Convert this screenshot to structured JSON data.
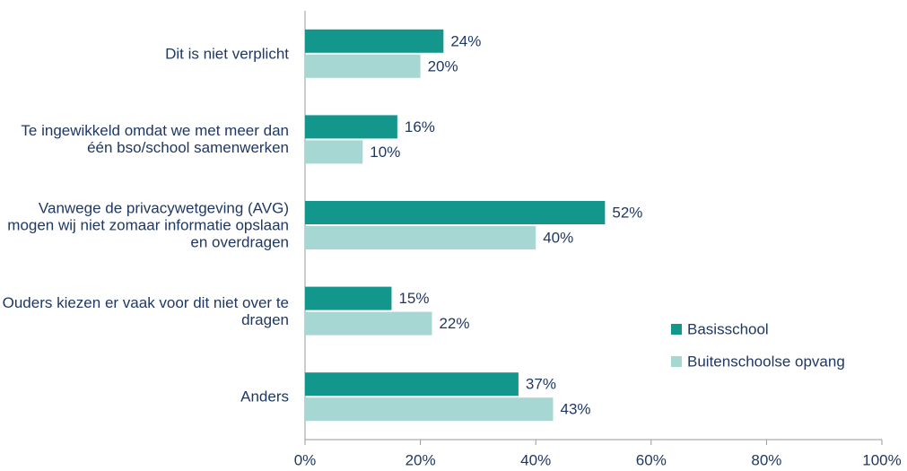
{
  "chart_data": {
    "type": "bar",
    "orientation": "horizontal",
    "categories": [
      "Dit is niet verplicht",
      "Te ingewikkeld omdat we met meer dan één bso/school samenwerken",
      "Vanwege de privacywetgeving (AVG) mogen wij niet zomaar informatie opslaan en overdragen",
      "Ouders kiezen er vaak voor dit niet over te dragen",
      "Anders"
    ],
    "series": [
      {
        "name": "Basisschool",
        "color": "#13968c",
        "values": [
          24,
          16,
          52,
          15,
          37
        ],
        "value_labels": [
          "24%",
          "16%",
          "52%",
          "15%",
          "37%"
        ]
      },
      {
        "name": "Buitenschoolse opvang",
        "color": "#a6d7d2",
        "values": [
          20,
          10,
          40,
          22,
          43
        ],
        "value_labels": [
          "20%",
          "10%",
          "40%",
          "22%",
          "43%"
        ]
      }
    ],
    "xlim": [
      0,
      100
    ],
    "xticks": [
      {
        "value": 0,
        "label": "0%"
      },
      {
        "value": 20,
        "label": "20%"
      },
      {
        "value": 40,
        "label": "40%"
      },
      {
        "value": 60,
        "label": "60%"
      },
      {
        "value": 80,
        "label": "80%"
      },
      {
        "value": 100,
        "label": "100%"
      }
    ],
    "legend": "right"
  }
}
